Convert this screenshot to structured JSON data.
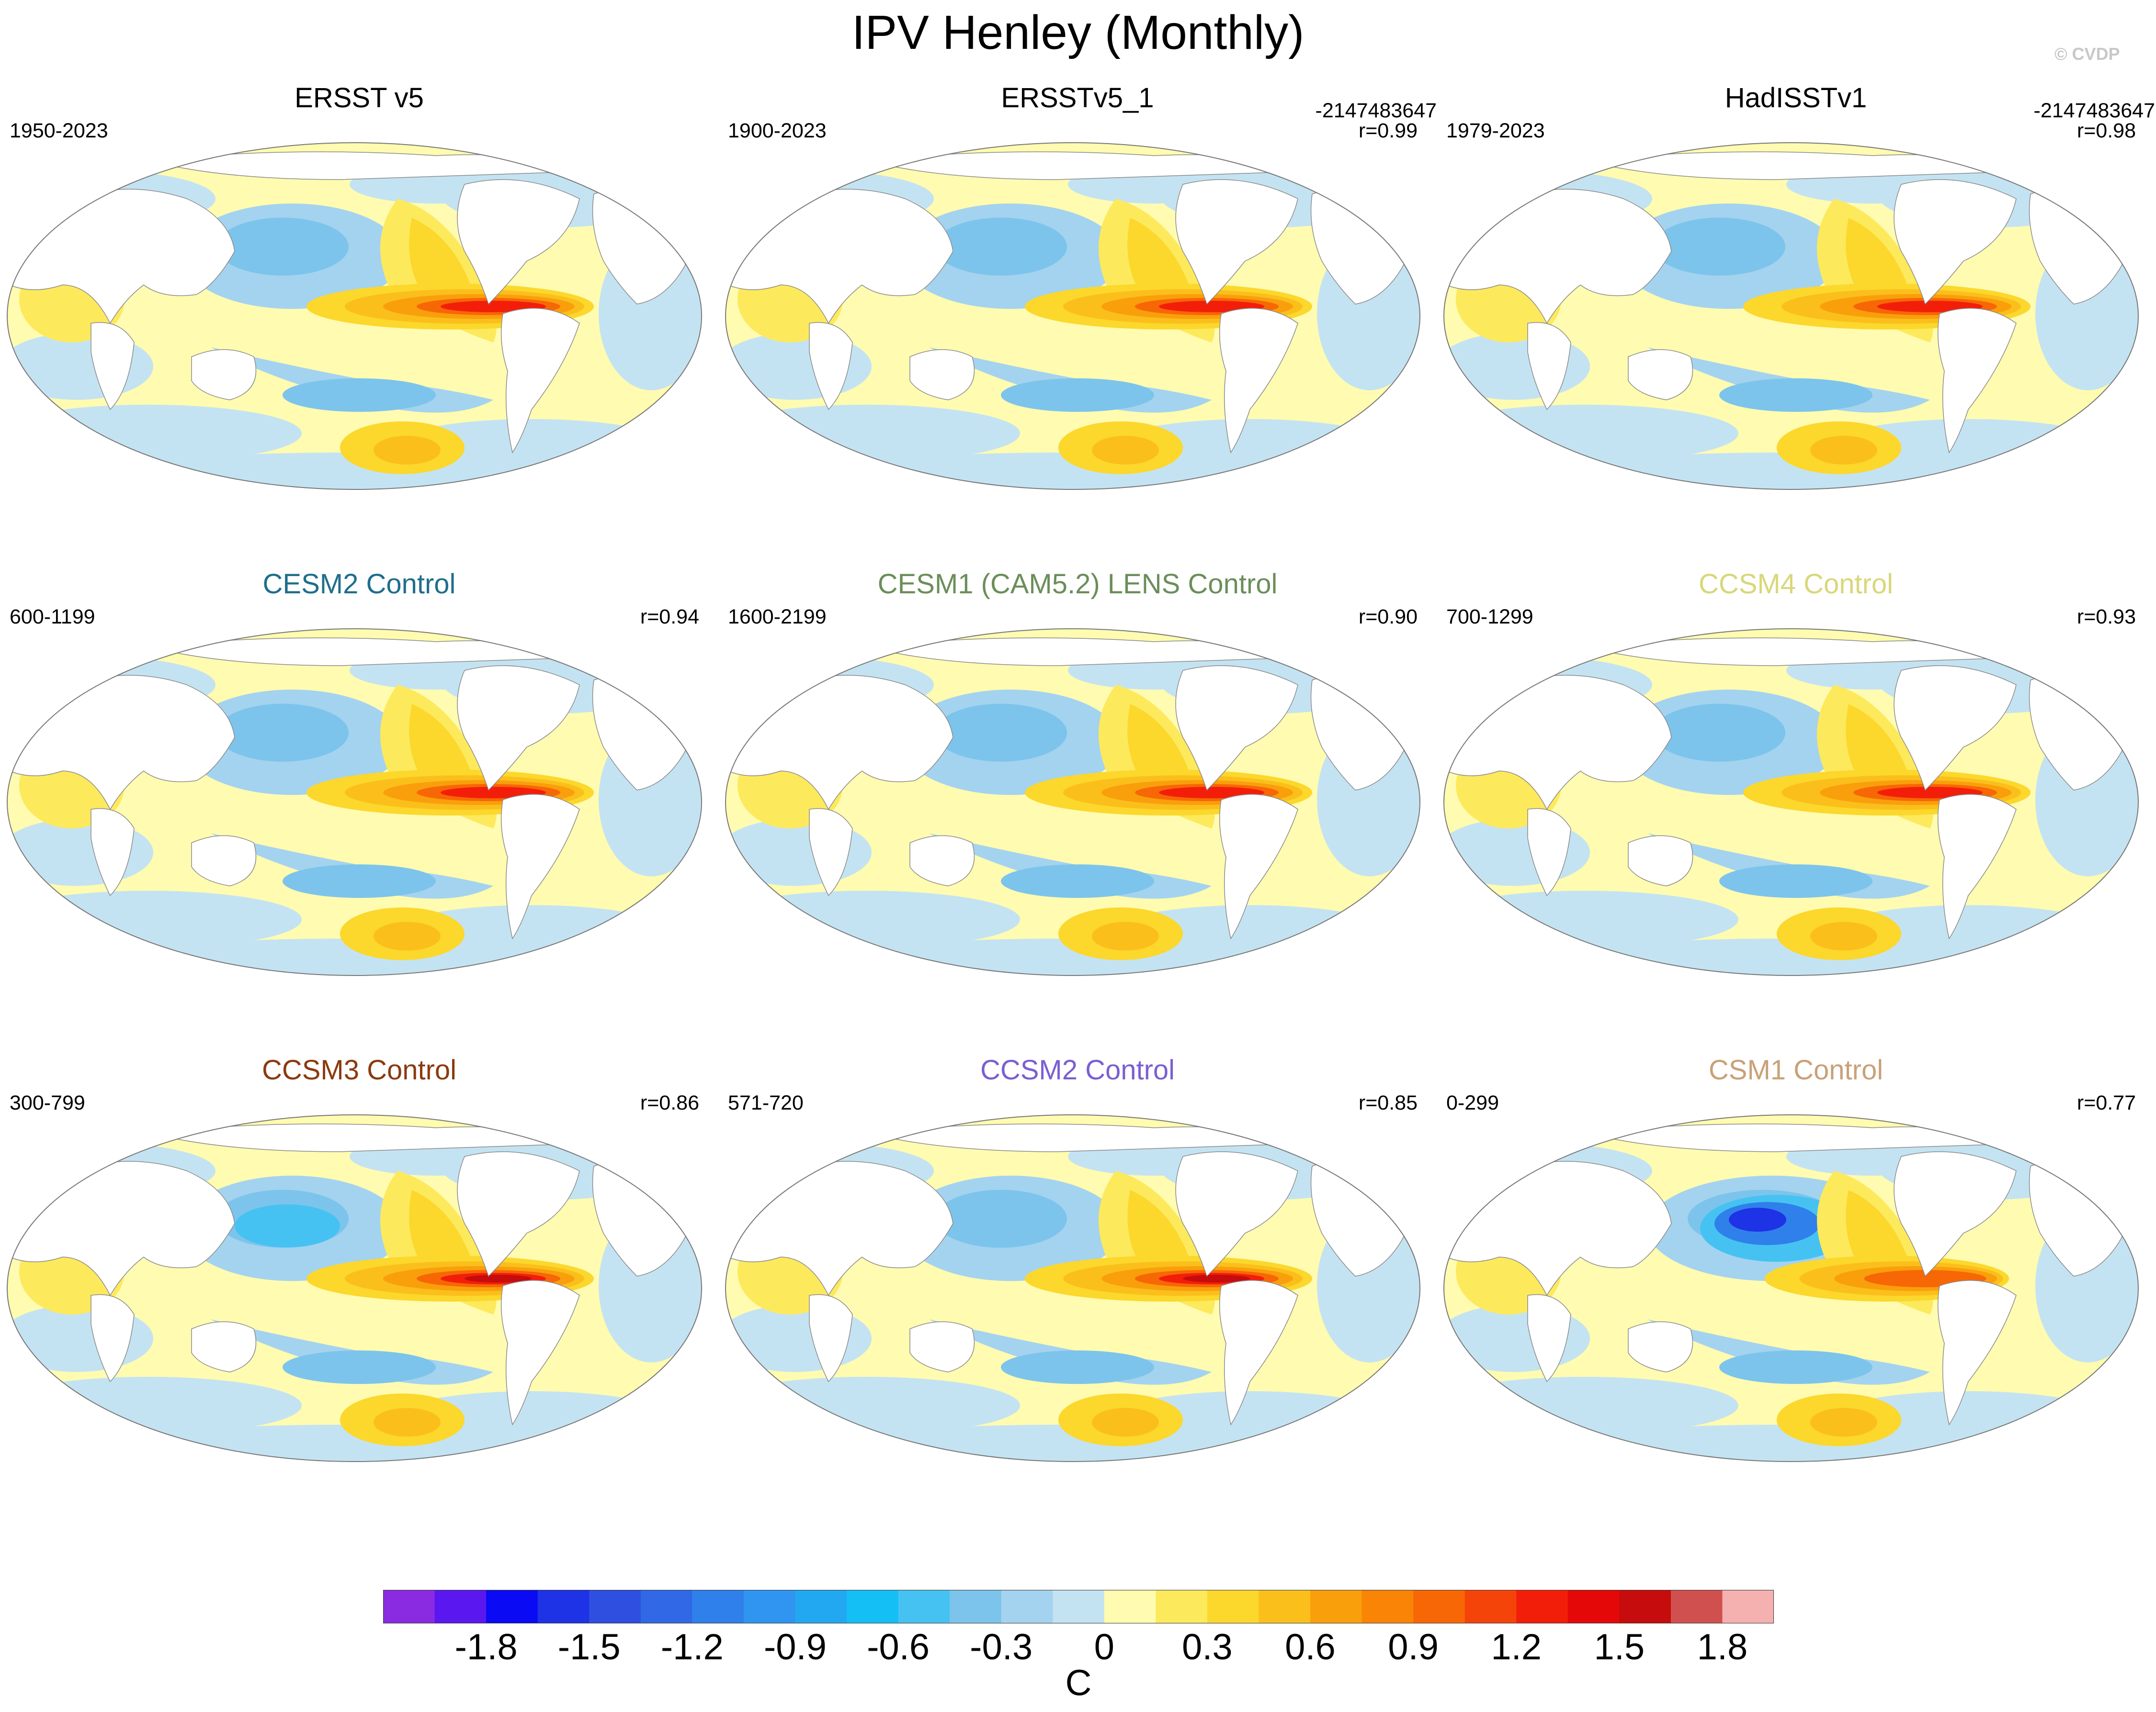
{
  "title": "IPV Henley (Monthly)",
  "credit": "© CVDP",
  "panels": [
    {
      "title": "ERSST v5",
      "title_color": "#000000",
      "period": "1950-2023",
      "id_text": "",
      "r_text": "",
      "pattern": "obs"
    },
    {
      "title": "ERSSTv5_1",
      "title_color": "#000000",
      "period": "1900-2023",
      "id_text": "-2147483647",
      "r_text": "r=0.99",
      "pattern": "obs"
    },
    {
      "title": "HadISSTv1",
      "title_color": "#000000",
      "period": "1979-2023",
      "id_text": "-2147483647",
      "r_text": "r=0.98",
      "pattern": "had"
    },
    {
      "title": "CESM2 Control",
      "title_color": "#1f6e8c",
      "period": "600-1199",
      "id_text": "",
      "r_text": "r=0.94",
      "pattern": "model"
    },
    {
      "title": "CESM1 (CAM5.2) LENS Control",
      "title_color": "#6b8e5a",
      "period": "1600-2199",
      "id_text": "",
      "r_text": "r=0.90",
      "pattern": "model"
    },
    {
      "title": "CCSM4 Control",
      "title_color": "#d9d77a",
      "period": "700-1299",
      "id_text": "",
      "r_text": "r=0.93",
      "pattern": "model"
    },
    {
      "title": "CCSM3 Control",
      "title_color": "#8b3a0f",
      "period": "300-799",
      "id_text": "",
      "r_text": "r=0.86",
      "pattern": "ccsm3"
    },
    {
      "title": "CCSM2 Control",
      "title_color": "#7b5fd1",
      "period": "571-720",
      "id_text": "",
      "r_text": "r=0.85",
      "pattern": "ccsm2"
    },
    {
      "title": "CSM1 Control",
      "title_color": "#c9a178",
      "period": "0-299",
      "id_text": "",
      "r_text": "r=0.77",
      "pattern": "csm1"
    }
  ],
  "colorbar": {
    "colors": [
      "#8a2be2",
      "#5a17f0",
      "#0a0af5",
      "#1e32e6",
      "#2e4fe0",
      "#3068e6",
      "#2f80ea",
      "#2f95f0",
      "#22a8f0",
      "#13bff5",
      "#46c2f2",
      "#7cc4eb",
      "#a4d3ef",
      "#c4e3f2",
      "#fffbb0",
      "#fde95c",
      "#fcd72c",
      "#fbbf1c",
      "#fa9f0c",
      "#f98406",
      "#f76705",
      "#f4440a",
      "#f31e0a",
      "#e40808",
      "#c60c0c",
      "#d05050",
      "#f5b0b0"
    ],
    "tick_labels": [
      "-1.8",
      "-1.5",
      "-1.2",
      "-0.9",
      "-0.6",
      "-0.3",
      "0",
      "0.3",
      "0.6",
      "0.9",
      "1.2",
      "1.5",
      "1.8"
    ],
    "unit": "C"
  }
}
